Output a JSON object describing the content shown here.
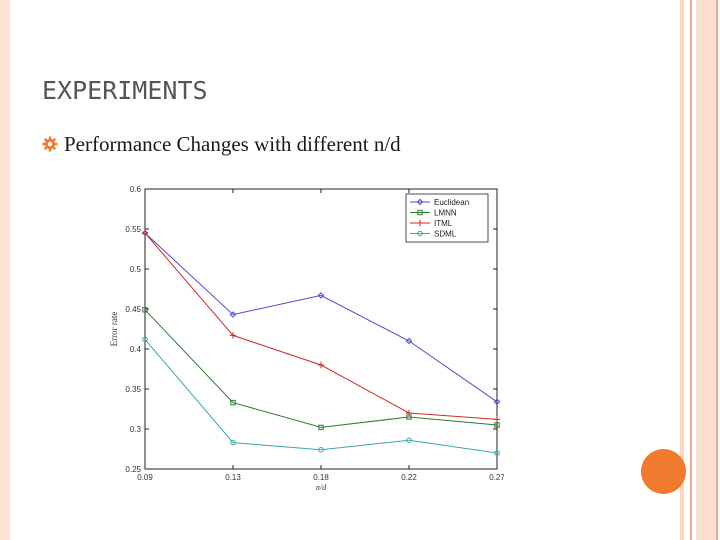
{
  "slide": {
    "title": "EXPERIMENTS",
    "bullet_text": "Performance Changes with different n/d",
    "accent_color": "#f07b2f",
    "bullet_icon": "gear-icon"
  },
  "chart_data": {
    "type": "line",
    "title": "",
    "xlabel": "n/d",
    "ylabel": "Error rate",
    "categories": [
      "0.09",
      "0.13",
      "0.18",
      "0.22",
      "0.27"
    ],
    "ylim": [
      0.25,
      0.6
    ],
    "yticks": [
      "0.25",
      "0.3",
      "0.35",
      "0.4",
      "0.45",
      "0.5",
      "0.55",
      "0.6"
    ],
    "grid": false,
    "legend_position": "top-right",
    "series": [
      {
        "name": "Euclidean",
        "color": "#4b4bcf",
        "marker": "diamond",
        "values": [
          0.545,
          0.443,
          0.467,
          0.41,
          0.334
        ]
      },
      {
        "name": "LMNN",
        "color": "#2e7d2e",
        "marker": "square",
        "values": [
          0.449,
          0.333,
          0.302,
          0.315,
          0.305
        ]
      },
      {
        "name": "ITML",
        "color": "#cc2b2b",
        "marker": "plus",
        "values": [
          0.545,
          0.417,
          0.38,
          0.32,
          0.312
        ]
      },
      {
        "name": "SDML",
        "color": "#3aa7b0",
        "marker": "circle",
        "values": [
          0.412,
          0.283,
          0.274,
          0.286,
          0.27
        ]
      }
    ]
  }
}
